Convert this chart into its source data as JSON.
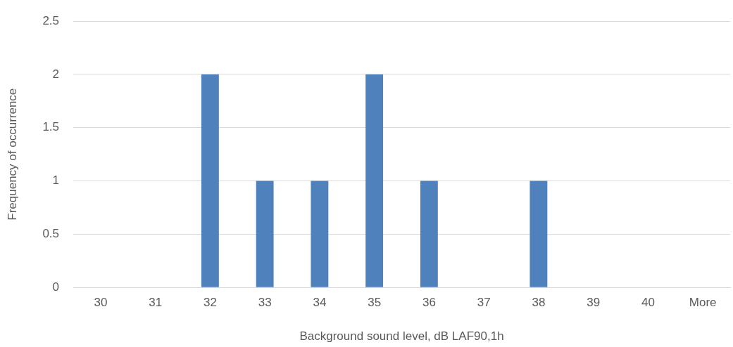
{
  "chart_data": {
    "type": "bar",
    "xlabel": "Background sound level, dB LAF90,1h",
    "ylabel": "Frequency of occurrence",
    "categories": [
      "30",
      "31",
      "32",
      "33",
      "34",
      "35",
      "36",
      "37",
      "38",
      "39",
      "40",
      "More"
    ],
    "values": [
      0,
      0,
      2,
      1,
      1,
      2,
      1,
      0,
      1,
      0,
      0,
      0
    ],
    "color": "#4f81bd",
    "ylim": [
      0,
      2.5
    ],
    "yticks": [
      0,
      0.5,
      1,
      1.5,
      2,
      2.5
    ],
    "grid": "y",
    "legend": false
  }
}
